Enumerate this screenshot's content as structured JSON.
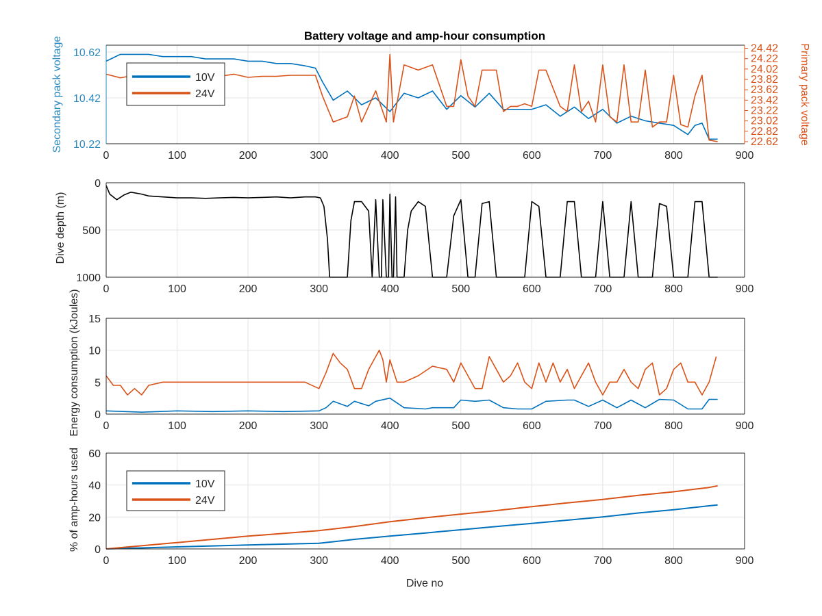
{
  "chart_data": [
    {
      "type": "line",
      "title": "Battery voltage and amp-hour consumption",
      "xlabel": "",
      "ylabel_left": "Secondary pack voltage",
      "ylabel_right": "Primary pack voltage",
      "xlim": [
        0,
        900
      ],
      "x_ticks": [
        0,
        100,
        200,
        300,
        400,
        500,
        600,
        700,
        800,
        900
      ],
      "ylim_left": [
        10.22,
        10.65
      ],
      "y_ticks_left": [
        10.22,
        10.42,
        10.62
      ],
      "ylim_right": [
        22.58,
        24.48
      ],
      "y_ticks_right": [
        22.62,
        22.82,
        23.02,
        23.22,
        23.42,
        23.62,
        23.82,
        24.02,
        24.22,
        24.42
      ],
      "grid": true,
      "legend": {
        "placement": "top-left",
        "entries": [
          "10V",
          "24V"
        ]
      },
      "colors": {
        "10V": "#0072BD",
        "24V": "#D95319",
        "left_axis": "#2E8BC0",
        "right_axis": "#D95319"
      },
      "series": [
        {
          "name": "10V",
          "axis": "left",
          "x": [
            0,
            20,
            40,
            60,
            80,
            100,
            120,
            140,
            160,
            180,
            200,
            220,
            240,
            260,
            280,
            295,
            305,
            320,
            340,
            360,
            380,
            400,
            420,
            440,
            460,
            480,
            500,
            520,
            540,
            560,
            580,
            600,
            620,
            640,
            660,
            680,
            700,
            720,
            740,
            760,
            780,
            800,
            820,
            830,
            840,
            850,
            862
          ],
          "y": [
            10.58,
            10.61,
            10.61,
            10.61,
            10.6,
            10.6,
            10.6,
            10.59,
            10.59,
            10.59,
            10.58,
            10.58,
            10.57,
            10.57,
            10.56,
            10.55,
            10.49,
            10.41,
            10.45,
            10.39,
            10.42,
            10.36,
            10.44,
            10.42,
            10.45,
            10.37,
            10.43,
            10.38,
            10.44,
            10.37,
            10.37,
            10.37,
            10.39,
            10.34,
            10.38,
            10.33,
            10.37,
            10.31,
            10.34,
            10.32,
            10.31,
            10.3,
            10.26,
            10.3,
            10.31,
            10.24,
            10.24
          ]
        },
        {
          "name": "24V",
          "axis": "right",
          "x": [
            0,
            20,
            40,
            60,
            80,
            100,
            120,
            140,
            160,
            180,
            200,
            220,
            240,
            260,
            280,
            295,
            305,
            320,
            340,
            350,
            360,
            380,
            395,
            400,
            405,
            420,
            440,
            460,
            480,
            490,
            500,
            510,
            520,
            530,
            540,
            550,
            560,
            570,
            580,
            590,
            600,
            610,
            620,
            640,
            650,
            660,
            670,
            680,
            690,
            700,
            710,
            720,
            730,
            740,
            750,
            760,
            770,
            780,
            790,
            800,
            810,
            820,
            830,
            840,
            850,
            862
          ],
          "y": [
            23.92,
            23.85,
            23.9,
            23.92,
            23.9,
            23.92,
            23.9,
            23.9,
            23.88,
            23.92,
            23.86,
            23.88,
            23.88,
            23.9,
            23.9,
            23.9,
            23.5,
            23.0,
            23.1,
            23.5,
            23.0,
            23.6,
            23.0,
            24.3,
            23.0,
            24.1,
            24.0,
            24.1,
            23.3,
            23.3,
            24.2,
            23.5,
            23.3,
            24.0,
            24.0,
            24.0,
            23.2,
            23.3,
            23.3,
            23.35,
            23.3,
            24.0,
            24.0,
            23.3,
            23.2,
            24.1,
            23.2,
            23.4,
            23.0,
            24.1,
            23.1,
            23.0,
            24.1,
            23.0,
            23.0,
            24.0,
            22.9,
            23.0,
            23.0,
            23.9,
            22.95,
            22.9,
            23.5,
            23.9,
            22.65,
            22.62
          ]
        }
      ]
    },
    {
      "type": "line",
      "title": "",
      "xlabel": "",
      "ylabel": "Dive depth (m)",
      "xlim": [
        0,
        900
      ],
      "x_ticks": [
        0,
        100,
        200,
        300,
        400,
        500,
        600,
        700,
        800,
        900
      ],
      "ylim": [
        0,
        1000
      ],
      "y_reversed": true,
      "y_ticks": [
        0,
        500,
        1000
      ],
      "y_tick_labels": [
        "0",
        "500",
        "1000"
      ],
      "grid": true,
      "colors": {
        "line": "#000000"
      },
      "series": [
        {
          "x": [
            0,
            5,
            15,
            25,
            35,
            50,
            60,
            80,
            100,
            120,
            140,
            160,
            180,
            200,
            220,
            240,
            260,
            280,
            295,
            302,
            307,
            312,
            315,
            325,
            340,
            345,
            350,
            360,
            370,
            375,
            380,
            385,
            388,
            390,
            395,
            398,
            400,
            403,
            405,
            408,
            410,
            415,
            420,
            425,
            430,
            440,
            450,
            460,
            470,
            480,
            490,
            500,
            510,
            520,
            530,
            540,
            550,
            560,
            570,
            580,
            590,
            600,
            610,
            620,
            630,
            640,
            650,
            660,
            670,
            680,
            690,
            700,
            710,
            720,
            730,
            740,
            750,
            760,
            770,
            780,
            790,
            800,
            810,
            820,
            830,
            840,
            850,
            862
          ],
          "y": [
            30,
            120,
            180,
            130,
            100,
            120,
            140,
            150,
            160,
            160,
            165,
            160,
            155,
            160,
            155,
            150,
            160,
            150,
            150,
            160,
            250,
            600,
            1000,
            1000,
            1000,
            400,
            200,
            200,
            300,
            1000,
            180,
            1000,
            1000,
            180,
            1000,
            1000,
            120,
            1000,
            1000,
            150,
            1000,
            1000,
            1000,
            500,
            300,
            200,
            250,
            1000,
            1000,
            1000,
            350,
            180,
            1000,
            1000,
            220,
            200,
            1000,
            1000,
            1000,
            1000,
            1000,
            200,
            250,
            1000,
            1000,
            1000,
            200,
            200,
            1000,
            1000,
            1000,
            200,
            1000,
            1000,
            1000,
            200,
            1000,
            1000,
            1000,
            220,
            250,
            1000,
            1000,
            1000,
            200,
            200,
            1000,
            1000
          ]
        }
      ]
    },
    {
      "type": "line",
      "title": "",
      "xlabel": "",
      "ylabel": "Energy consumption (kJoules)",
      "xlim": [
        0,
        900
      ],
      "x_ticks": [
        0,
        100,
        200,
        300,
        400,
        500,
        600,
        700,
        800,
        900
      ],
      "ylim": [
        0,
        15
      ],
      "y_ticks": [
        0,
        5,
        10,
        15
      ],
      "grid": true,
      "colors": {
        "10V": "#0072BD",
        "24V": "#D95319"
      },
      "series": [
        {
          "name": "10V",
          "x": [
            0,
            50,
            100,
            150,
            200,
            250,
            300,
            310,
            320,
            340,
            350,
            370,
            380,
            400,
            420,
            450,
            460,
            490,
            500,
            520,
            540,
            560,
            580,
            600,
            620,
            650,
            660,
            680,
            700,
            720,
            740,
            760,
            780,
            800,
            820,
            840,
            850,
            862
          ],
          "y": [
            0.5,
            0.3,
            0.5,
            0.4,
            0.5,
            0.4,
            0.5,
            1.0,
            2.0,
            1.2,
            2.0,
            1.3,
            2.0,
            2.5,
            1.0,
            0.8,
            1.0,
            1.0,
            2.2,
            2.0,
            2.2,
            1.0,
            0.8,
            0.8,
            2.0,
            2.2,
            2.2,
            1.2,
            2.2,
            1.0,
            2.2,
            1.0,
            2.3,
            2.2,
            0.8,
            0.8,
            2.3,
            2.3
          ]
        },
        {
          "name": "24V",
          "x": [
            0,
            10,
            20,
            30,
            40,
            50,
            60,
            80,
            100,
            120,
            140,
            160,
            180,
            200,
            220,
            240,
            260,
            280,
            300,
            310,
            320,
            330,
            340,
            350,
            360,
            370,
            380,
            385,
            390,
            395,
            400,
            410,
            420,
            440,
            460,
            480,
            490,
            500,
            520,
            530,
            540,
            550,
            560,
            570,
            580,
            590,
            600,
            610,
            620,
            630,
            640,
            650,
            660,
            670,
            680,
            690,
            700,
            710,
            720,
            730,
            740,
            750,
            760,
            770,
            780,
            790,
            800,
            810,
            820,
            830,
            840,
            850,
            860
          ],
          "y": [
            6,
            4.5,
            4.5,
            3,
            4,
            3,
            4.5,
            5,
            5,
            5,
            5,
            5,
            5,
            5,
            5,
            5,
            5,
            5,
            4,
            6.5,
            9.5,
            8,
            7,
            4,
            4,
            7,
            9,
            10,
            8.5,
            5,
            8.5,
            5,
            5,
            6,
            7.5,
            7,
            5,
            8,
            4,
            4,
            9,
            7,
            5,
            6,
            8,
            5,
            4,
            8,
            5,
            8,
            5,
            7,
            4,
            6,
            8,
            5,
            3,
            5,
            5,
            7,
            5,
            4,
            7,
            8,
            3,
            4,
            7,
            8,
            5,
            5,
            3,
            5,
            9
          ]
        }
      ]
    },
    {
      "type": "line",
      "title": "",
      "xlabel": "Dive no",
      "ylabel": "% of amp-hours used",
      "xlim": [
        0,
        900
      ],
      "x_ticks": [
        0,
        100,
        200,
        300,
        400,
        500,
        600,
        700,
        800,
        900
      ],
      "ylim": [
        0,
        60
      ],
      "y_ticks": [
        0,
        20,
        40,
        60
      ],
      "grid": true,
      "legend": {
        "placement": "top-left",
        "entries": [
          "10V",
          "24V"
        ]
      },
      "colors": {
        "10V": "#0072BD",
        "24V": "#D95319"
      },
      "series": [
        {
          "name": "10V",
          "x": [
            0,
            100,
            200,
            300,
            320,
            350,
            400,
            450,
            500,
            550,
            600,
            650,
            700,
            750,
            800,
            850,
            862
          ],
          "y": [
            0,
            1.3,
            2.5,
            3.5,
            4.5,
            6,
            8,
            10,
            12,
            14,
            16,
            18,
            20,
            22.5,
            24.5,
            27,
            27.5
          ]
        },
        {
          "name": "24V",
          "x": [
            0,
            100,
            200,
            300,
            350,
            400,
            450,
            500,
            550,
            600,
            650,
            700,
            750,
            800,
            850,
            862
          ],
          "y": [
            0,
            4,
            8,
            11.5,
            14,
            17,
            19.5,
            21.8,
            24,
            26.5,
            28.8,
            31,
            33.5,
            35.8,
            38.5,
            39.5
          ]
        }
      ]
    }
  ]
}
